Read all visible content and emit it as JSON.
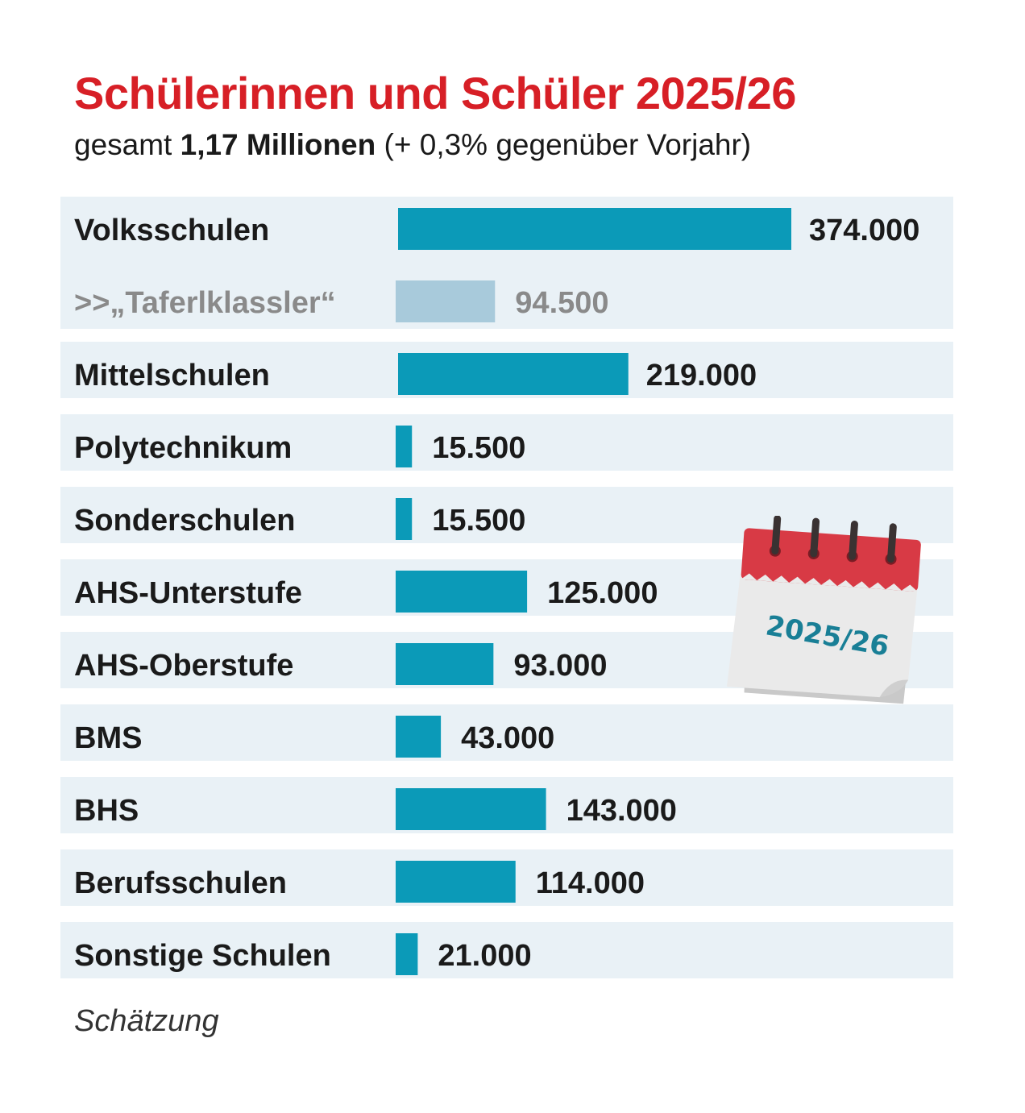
{
  "colors": {
    "title": "#d71f26",
    "bar": "#0b9ab8",
    "bar_sub": "#a8cadb",
    "row_bg": "#e9f1f6",
    "label": "#1a1a1a",
    "label_sub": "#8a8a8a",
    "calendar_red": "#d83a45"
  },
  "header": {
    "title": "Schülerinnen und Schüler 2025/26",
    "subtitle_pre": "gesamt ",
    "subtitle_bold": "1,17 Millionen",
    "subtitle_post": " (+ 0,3% gegenüber Vorjahr)"
  },
  "calendar": {
    "icon": "calendar-icon",
    "text": "2025/26"
  },
  "footnote": "Schätzung",
  "chart_data": {
    "type": "bar",
    "orientation": "horizontal",
    "categories": [
      "Volksschulen",
      ">>„Taferlklassler“",
      "Mittelschulen",
      "Polytechnikum",
      "Sonderschulen",
      "AHS-Unterstufe",
      "AHS-Oberstufe",
      "BMS",
      "BHS",
      "Berufsschulen",
      "Sonstige Schulen"
    ],
    "values": [
      374000,
      94500,
      219000,
      15500,
      15500,
      125000,
      93000,
      43000,
      143000,
      114000,
      21000
    ],
    "value_labels": [
      "374.000",
      "94.500",
      "219.000",
      "15.500",
      "15.500",
      "125.000",
      "93.000",
      "43.000",
      "143.000",
      "114.000",
      "21.000"
    ],
    "sub_category_of_previous": [
      false,
      true,
      false,
      false,
      false,
      false,
      false,
      false,
      false,
      false,
      false
    ],
    "xlim": [
      0,
      374000
    ],
    "grid": false,
    "legend": "none"
  }
}
